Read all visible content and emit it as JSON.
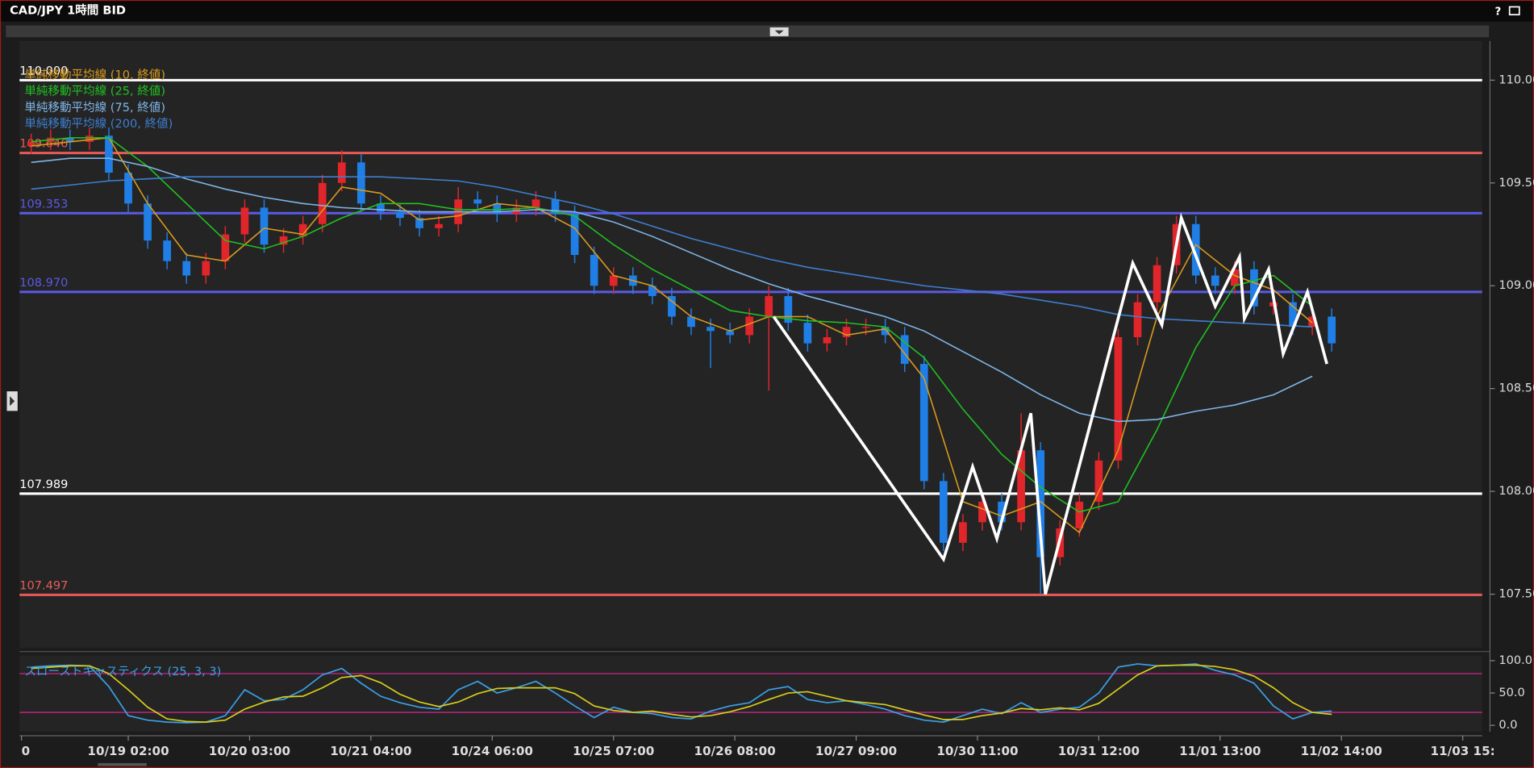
{
  "window": {
    "title": "CAD/JPY 1時間 BID",
    "help": "?"
  },
  "chart_data": [
    {
      "type": "candlestick",
      "legend": "top-left",
      "xlim": [
        -22.4,
        279
      ],
      "ylim": [
        107.24,
        110.19
      ],
      "yticks": [
        {
          "value": 110,
          "label": "110.00"
        },
        {
          "value": 109.5,
          "label": "109.50"
        },
        {
          "value": 109,
          "label": "109.00"
        },
        {
          "value": 108.5,
          "label": "108.50"
        },
        {
          "value": 108,
          "label": "108.00"
        },
        {
          "value": 107.5,
          "label": "107.50"
        }
      ],
      "candles": {
        "up_color": "#e0262a",
        "down_color": "#1f7fe6",
        "x": [
          -20,
          -16,
          -12,
          -8,
          -4,
          0,
          4,
          8,
          12,
          16,
          20,
          24,
          28,
          32,
          36,
          40,
          44,
          48,
          52,
          56,
          60,
          64,
          68,
          72,
          76,
          80,
          84,
          88,
          92,
          96,
          100,
          104,
          108,
          112,
          116,
          120,
          124,
          128,
          132,
          136,
          140,
          144,
          148,
          152,
          156,
          160,
          164,
          168,
          172,
          176,
          180,
          184,
          188,
          192,
          196,
          200,
          204,
          208,
          212,
          216,
          220,
          224,
          228,
          232,
          236,
          240,
          244,
          248
        ],
        "open": [
          109.68,
          109.7,
          109.72,
          109.7,
          109.73,
          109.55,
          109.4,
          109.22,
          109.12,
          109.05,
          109.12,
          109.25,
          109.38,
          109.2,
          109.24,
          109.3,
          109.5,
          109.6,
          109.4,
          109.36,
          109.33,
          109.28,
          109.3,
          109.42,
          109.4,
          109.35,
          109.38,
          109.42,
          109.35,
          109.15,
          109.0,
          109.05,
          109.0,
          108.95,
          108.85,
          108.8,
          108.78,
          108.76,
          108.85,
          108.95,
          108.82,
          108.72,
          108.75,
          108.8,
          108.8,
          108.76,
          108.62,
          108.05,
          107.75,
          107.85,
          107.95,
          107.85,
          108.2,
          107.68,
          107.82,
          107.95,
          108.15,
          108.75,
          108.92,
          109.1,
          109.3,
          109.05,
          109.0,
          109.08,
          108.9,
          108.92,
          108.8,
          108.85
        ],
        "high": [
          109.74,
          109.76,
          109.76,
          109.77,
          109.77,
          109.59,
          109.44,
          109.26,
          109.16,
          109.16,
          109.29,
          109.42,
          109.42,
          109.28,
          109.34,
          109.54,
          109.66,
          109.64,
          109.44,
          109.4,
          109.37,
          109.34,
          109.48,
          109.46,
          109.44,
          109.42,
          109.46,
          109.46,
          109.39,
          109.19,
          109.09,
          109.09,
          109.04,
          108.99,
          108.89,
          108.84,
          108.82,
          108.89,
          109.0,
          108.99,
          108.86,
          108.79,
          108.84,
          108.84,
          108.84,
          108.8,
          108.66,
          108.09,
          107.89,
          107.99,
          107.99,
          108.38,
          108.24,
          107.86,
          107.99,
          108.19,
          108.79,
          108.96,
          109.14,
          109.34,
          109.34,
          109.09,
          109.12,
          109.12,
          108.96,
          108.96,
          108.89,
          108.89
        ],
        "low": [
          109.64,
          109.66,
          109.66,
          109.66,
          109.51,
          109.36,
          109.18,
          109.08,
          109.01,
          109.01,
          109.08,
          109.21,
          109.16,
          109.16,
          109.2,
          109.26,
          109.46,
          109.36,
          109.32,
          109.29,
          109.24,
          109.24,
          109.26,
          109.36,
          109.31,
          109.31,
          109.34,
          109.31,
          109.11,
          108.96,
          108.96,
          108.96,
          108.91,
          108.81,
          108.76,
          108.6,
          108.72,
          108.72,
          108.49,
          108.78,
          108.68,
          108.68,
          108.71,
          108.76,
          108.72,
          108.58,
          108.01,
          107.71,
          107.71,
          107.81,
          107.81,
          107.81,
          107.5,
          107.64,
          107.78,
          107.91,
          108.11,
          108.71,
          108.88,
          109.06,
          109.01,
          108.96,
          108.96,
          108.86,
          108.86,
          108.76,
          108.76,
          108.68
        ],
        "close": [
          109.7,
          109.72,
          109.7,
          109.73,
          109.55,
          109.4,
          109.22,
          109.12,
          109.05,
          109.12,
          109.25,
          109.38,
          109.2,
          109.24,
          109.3,
          109.5,
          109.6,
          109.4,
          109.36,
          109.33,
          109.28,
          109.3,
          109.42,
          109.4,
          109.35,
          109.38,
          109.42,
          109.35,
          109.15,
          109.0,
          109.05,
          109.0,
          108.95,
          108.85,
          108.8,
          108.78,
          108.76,
          108.85,
          108.95,
          108.82,
          108.72,
          108.75,
          108.8,
          108.8,
          108.76,
          108.62,
          108.05,
          107.75,
          107.85,
          107.95,
          107.85,
          108.2,
          107.68,
          107.82,
          107.95,
          108.15,
          108.75,
          108.92,
          109.1,
          109.3,
          109.05,
          109.0,
          109.08,
          108.9,
          108.92,
          108.8,
          108.85,
          108.72
        ]
      },
      "series": [
        {
          "name": "単純移動平均線 (10, 終値)",
          "color": "#d99a1e",
          "x": [
            -20,
            -12,
            -4,
            4,
            12,
            20,
            28,
            36,
            44,
            52,
            60,
            68,
            76,
            84,
            92,
            100,
            108,
            116,
            124,
            132,
            140,
            148,
            156,
            164,
            172,
            180,
            188,
            196,
            204,
            212,
            220,
            228,
            236,
            244
          ],
          "values": [
            109.68,
            109.7,
            109.72,
            109.4,
            109.15,
            109.12,
            109.28,
            109.25,
            109.48,
            109.45,
            109.32,
            109.34,
            109.4,
            109.38,
            109.28,
            109.05,
            109.0,
            108.85,
            108.78,
            108.85,
            108.85,
            108.76,
            108.79,
            108.55,
            107.95,
            107.88,
            107.95,
            107.8,
            108.2,
            108.85,
            109.2,
            109.05,
            108.98,
            108.82
          ]
        },
        {
          "name": "単純移動平均線 (25, 終値)",
          "color": "#1fc21f",
          "x": [
            -20,
            -12,
            -4,
            4,
            12,
            20,
            28,
            36,
            44,
            52,
            60,
            68,
            76,
            84,
            92,
            100,
            108,
            116,
            124,
            132,
            140,
            148,
            156,
            164,
            172,
            180,
            188,
            196,
            204,
            212,
            220,
            228,
            236,
            244
          ],
          "values": [
            109.7,
            109.72,
            109.72,
            109.58,
            109.4,
            109.22,
            109.18,
            109.24,
            109.33,
            109.4,
            109.4,
            109.37,
            109.37,
            109.38,
            109.34,
            109.2,
            109.08,
            108.98,
            108.88,
            108.85,
            108.83,
            108.82,
            108.8,
            108.65,
            108.4,
            108.18,
            108.02,
            107.9,
            107.95,
            108.3,
            108.7,
            109.0,
            109.05,
            108.9
          ]
        },
        {
          "name": "単純移動平均線 (75, 終値)",
          "color": "#7fb6e8",
          "x": [
            -20,
            -12,
            -4,
            4,
            12,
            20,
            28,
            36,
            44,
            52,
            60,
            68,
            76,
            84,
            92,
            100,
            108,
            116,
            124,
            132,
            140,
            148,
            156,
            164,
            172,
            180,
            188,
            196,
            204,
            212,
            220,
            228,
            236,
            244
          ],
          "values": [
            109.6,
            109.62,
            109.62,
            109.58,
            109.52,
            109.47,
            109.43,
            109.4,
            109.38,
            109.37,
            109.36,
            109.36,
            109.36,
            109.37,
            109.36,
            109.31,
            109.24,
            109.16,
            109.08,
            109.01,
            108.95,
            108.9,
            108.85,
            108.78,
            108.68,
            108.58,
            108.47,
            108.38,
            108.34,
            108.35,
            108.39,
            108.42,
            108.47,
            108.56
          ]
        },
        {
          "name": "単純移動平均線 (200, 終値)",
          "color": "#3e7fd0",
          "x": [
            -20,
            -12,
            -4,
            4,
            12,
            20,
            28,
            36,
            44,
            52,
            60,
            68,
            76,
            84,
            92,
            100,
            108,
            116,
            124,
            132,
            140,
            148,
            156,
            164,
            172,
            180,
            188,
            196,
            204,
            212,
            220,
            228,
            236,
            244
          ],
          "values": [
            109.47,
            109.49,
            109.51,
            109.52,
            109.53,
            109.53,
            109.53,
            109.53,
            109.53,
            109.53,
            109.52,
            109.51,
            109.48,
            109.44,
            109.4,
            109.35,
            109.29,
            109.23,
            109.18,
            109.13,
            109.09,
            109.06,
            109.03,
            109.0,
            108.98,
            108.96,
            108.93,
            108.9,
            108.86,
            108.84,
            108.83,
            108.82,
            108.81,
            108.8
          ]
        }
      ],
      "zigzag": {
        "color": "#ffffff",
        "x": [
          133,
          168,
          174,
          179,
          186,
          189,
          207,
          213,
          217,
          224,
          229,
          230,
          235,
          238,
          243,
          247
        ],
        "values": [
          108.85,
          107.67,
          108.12,
          107.77,
          108.38,
          107.5,
          109.11,
          108.81,
          109.33,
          108.9,
          109.14,
          108.84,
          109.08,
          108.67,
          108.97,
          108.62
        ]
      },
      "levels": [
        {
          "value": 110,
          "label": "110.000",
          "color": "#ffffff"
        },
        {
          "value": 109.646,
          "label": "109.646",
          "color": "#e85a5a"
        },
        {
          "value": 109.353,
          "label": "109.353",
          "color": "#5a5ae6"
        },
        {
          "value": 108.97,
          "label": "108.970",
          "color": "#5a5ae6"
        },
        {
          "value": 107.989,
          "label": "107.989",
          "color": "#ffffff"
        },
        {
          "value": 107.497,
          "label": "107.497",
          "color": "#e85a5a"
        }
      ]
    },
    {
      "type": "line",
      "label": "スローストキャスティクス (25, 3, 3)",
      "label_color": "#3aa0e8",
      "xlim": [
        -22.4,
        279
      ],
      "ylim": [
        -10,
        108
      ],
      "yticks": [
        {
          "value": 100,
          "label": "100.0"
        },
        {
          "value": 50,
          "label": "50.0"
        },
        {
          "value": 0,
          "label": "0.0"
        }
      ],
      "levels": [
        80,
        20
      ],
      "level_color": "#b0247a",
      "xticks": [
        {
          "value": -22,
          "label": "0"
        },
        {
          "value": 0,
          "label": "10/19 02:00"
        },
        {
          "value": 25,
          "label": "10/20 03:00"
        },
        {
          "value": 50,
          "label": "10/21 04:00"
        },
        {
          "value": 75,
          "label": "10/24 06:00"
        },
        {
          "value": 100,
          "label": "10/25 07:00"
        },
        {
          "value": 125,
          "label": "10/26 08:00"
        },
        {
          "value": 150,
          "label": "10/27 09:00"
        },
        {
          "value": 175,
          "label": "10/30 11:00"
        },
        {
          "value": 200,
          "label": "10/31 12:00"
        },
        {
          "value": 225,
          "label": "11/01 13:00"
        },
        {
          "value": 250,
          "label": "11/02 14:00"
        },
        {
          "value": 275,
          "label": "11/03 15:"
        }
      ],
      "x": [
        -20,
        -16,
        -12,
        -8,
        -4,
        0,
        4,
        8,
        12,
        16,
        20,
        24,
        28,
        32,
        36,
        40,
        44,
        48,
        52,
        56,
        60,
        64,
        68,
        72,
        76,
        80,
        84,
        88,
        92,
        96,
        100,
        104,
        108,
        112,
        116,
        120,
        124,
        128,
        132,
        136,
        140,
        144,
        148,
        152,
        156,
        160,
        164,
        168,
        172,
        176,
        180,
        184,
        188,
        192,
        196,
        200,
        204,
        208,
        212,
        216,
        220,
        224,
        228,
        232,
        236,
        240,
        244,
        248
      ],
      "series": [
        {
          "color": "#3aa0e8",
          "values": [
            90,
            92,
            93,
            92,
            60,
            15,
            8,
            5,
            4,
            5,
            15,
            55,
            38,
            40,
            55,
            78,
            88,
            65,
            45,
            35,
            28,
            25,
            55,
            68,
            50,
            58,
            68,
            50,
            30,
            12,
            28,
            20,
            18,
            12,
            10,
            22,
            30,
            35,
            55,
            60,
            40,
            35,
            38,
            32,
            25,
            15,
            8,
            5,
            15,
            25,
            18,
            35,
            20,
            25,
            28,
            50,
            90,
            95,
            92,
            93,
            95,
            85,
            78,
            65,
            30,
            10,
            20,
            22
          ]
        },
        {
          "color": "#d8cc1c",
          "values": [
            88,
            90,
            92,
            92,
            80,
            55,
            28,
            10,
            6,
            5,
            8,
            25,
            36,
            44,
            45,
            58,
            74,
            77,
            66,
            48,
            36,
            29,
            36,
            49,
            57,
            58,
            58,
            58,
            49,
            30,
            23,
            20,
            22,
            17,
            13,
            15,
            21,
            29,
            40,
            50,
            52,
            45,
            38,
            35,
            32,
            24,
            16,
            9,
            9,
            15,
            19,
            26,
            24,
            27,
            24,
            34,
            56,
            78,
            92,
            93,
            93,
            91,
            86,
            76,
            58,
            35,
            20,
            17
          ]
        }
      ]
    }
  ]
}
